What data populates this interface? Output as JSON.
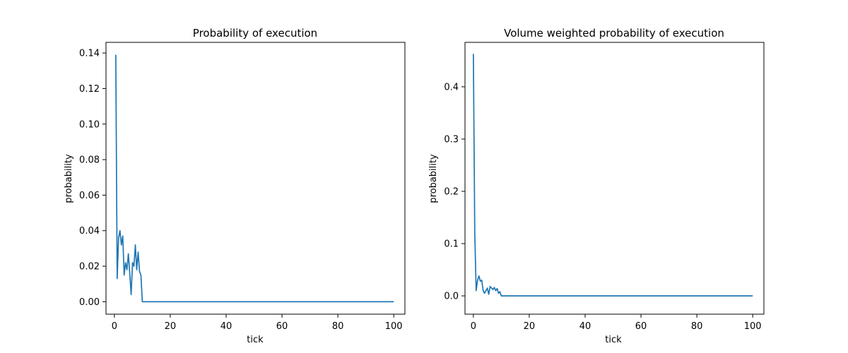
{
  "chart_data": [
    {
      "type": "line",
      "title": "Probability of execution",
      "xlabel": "tick",
      "ylabel": "probability",
      "xlim": [
        -3,
        104
      ],
      "ylim": [
        -0.007,
        0.146
      ],
      "xticks": [
        0,
        20,
        40,
        60,
        80,
        100
      ],
      "xtick_labels": [
        "0",
        "20",
        "40",
        "60",
        "80",
        "100"
      ],
      "yticks": [
        0,
        0.02,
        0.04,
        0.06,
        0.08,
        0.1,
        0.12,
        0.14
      ],
      "ytick_labels": [
        "0.00",
        "0.02",
        "0.04",
        "0.06",
        "0.08",
        "0.10",
        "0.12",
        "0.14"
      ],
      "color": "#1f77b4",
      "series": [
        {
          "name": "probability",
          "x": [
            0.5,
            1.0,
            1.5,
            2.0,
            2.5,
            3.0,
            3.5,
            4.0,
            4.5,
            5.0,
            5.5,
            6.0,
            6.5,
            7.0,
            7.5,
            8.0,
            8.5,
            9.0,
            9.5,
            10.0,
            10.5,
            11.0,
            20,
            40,
            60,
            80,
            100
          ],
          "y": [
            0.139,
            0.013,
            0.036,
            0.04,
            0.032,
            0.037,
            0.015,
            0.022,
            0.018,
            0.027,
            0.016,
            0.004,
            0.022,
            0.02,
            0.032,
            0.018,
            0.028,
            0.017,
            0.015,
            0.0,
            0.0,
            0.0,
            0.0,
            0.0,
            0.0,
            0.0,
            0.0
          ]
        }
      ]
    },
    {
      "type": "line",
      "title": "Volume weighted probability of execution",
      "xlabel": "tick",
      "ylabel": "probability",
      "xlim": [
        -3,
        104
      ],
      "ylim": [
        -0.035,
        0.485
      ],
      "xticks": [
        0,
        20,
        40,
        60,
        80,
        100
      ],
      "xtick_labels": [
        "0",
        "20",
        "40",
        "60",
        "80",
        "100"
      ],
      "yticks": [
        0,
        0.1,
        0.2,
        0.3,
        0.4
      ],
      "ytick_labels": [
        "0.0",
        "0.1",
        "0.2",
        "0.3",
        "0.4"
      ],
      "color": "#1f77b4",
      "series": [
        {
          "name": "probability",
          "x": [
            0.0,
            0.5,
            1.0,
            1.5,
            2.0,
            2.5,
            3.0,
            3.5,
            4.0,
            4.5,
            5.0,
            5.5,
            6.0,
            6.5,
            7.0,
            7.5,
            8.0,
            8.5,
            9.0,
            9.5,
            10.0,
            10.5,
            20,
            40,
            60,
            80,
            100
          ],
          "y": [
            0.463,
            0.12,
            0.01,
            0.03,
            0.038,
            0.028,
            0.03,
            0.01,
            0.005,
            0.01,
            0.015,
            0.003,
            0.018,
            0.015,
            0.012,
            0.016,
            0.01,
            0.014,
            0.005,
            0.008,
            0.0,
            0.0,
            0.0,
            0.0,
            0.0,
            0.0,
            0.0
          ]
        }
      ]
    }
  ]
}
